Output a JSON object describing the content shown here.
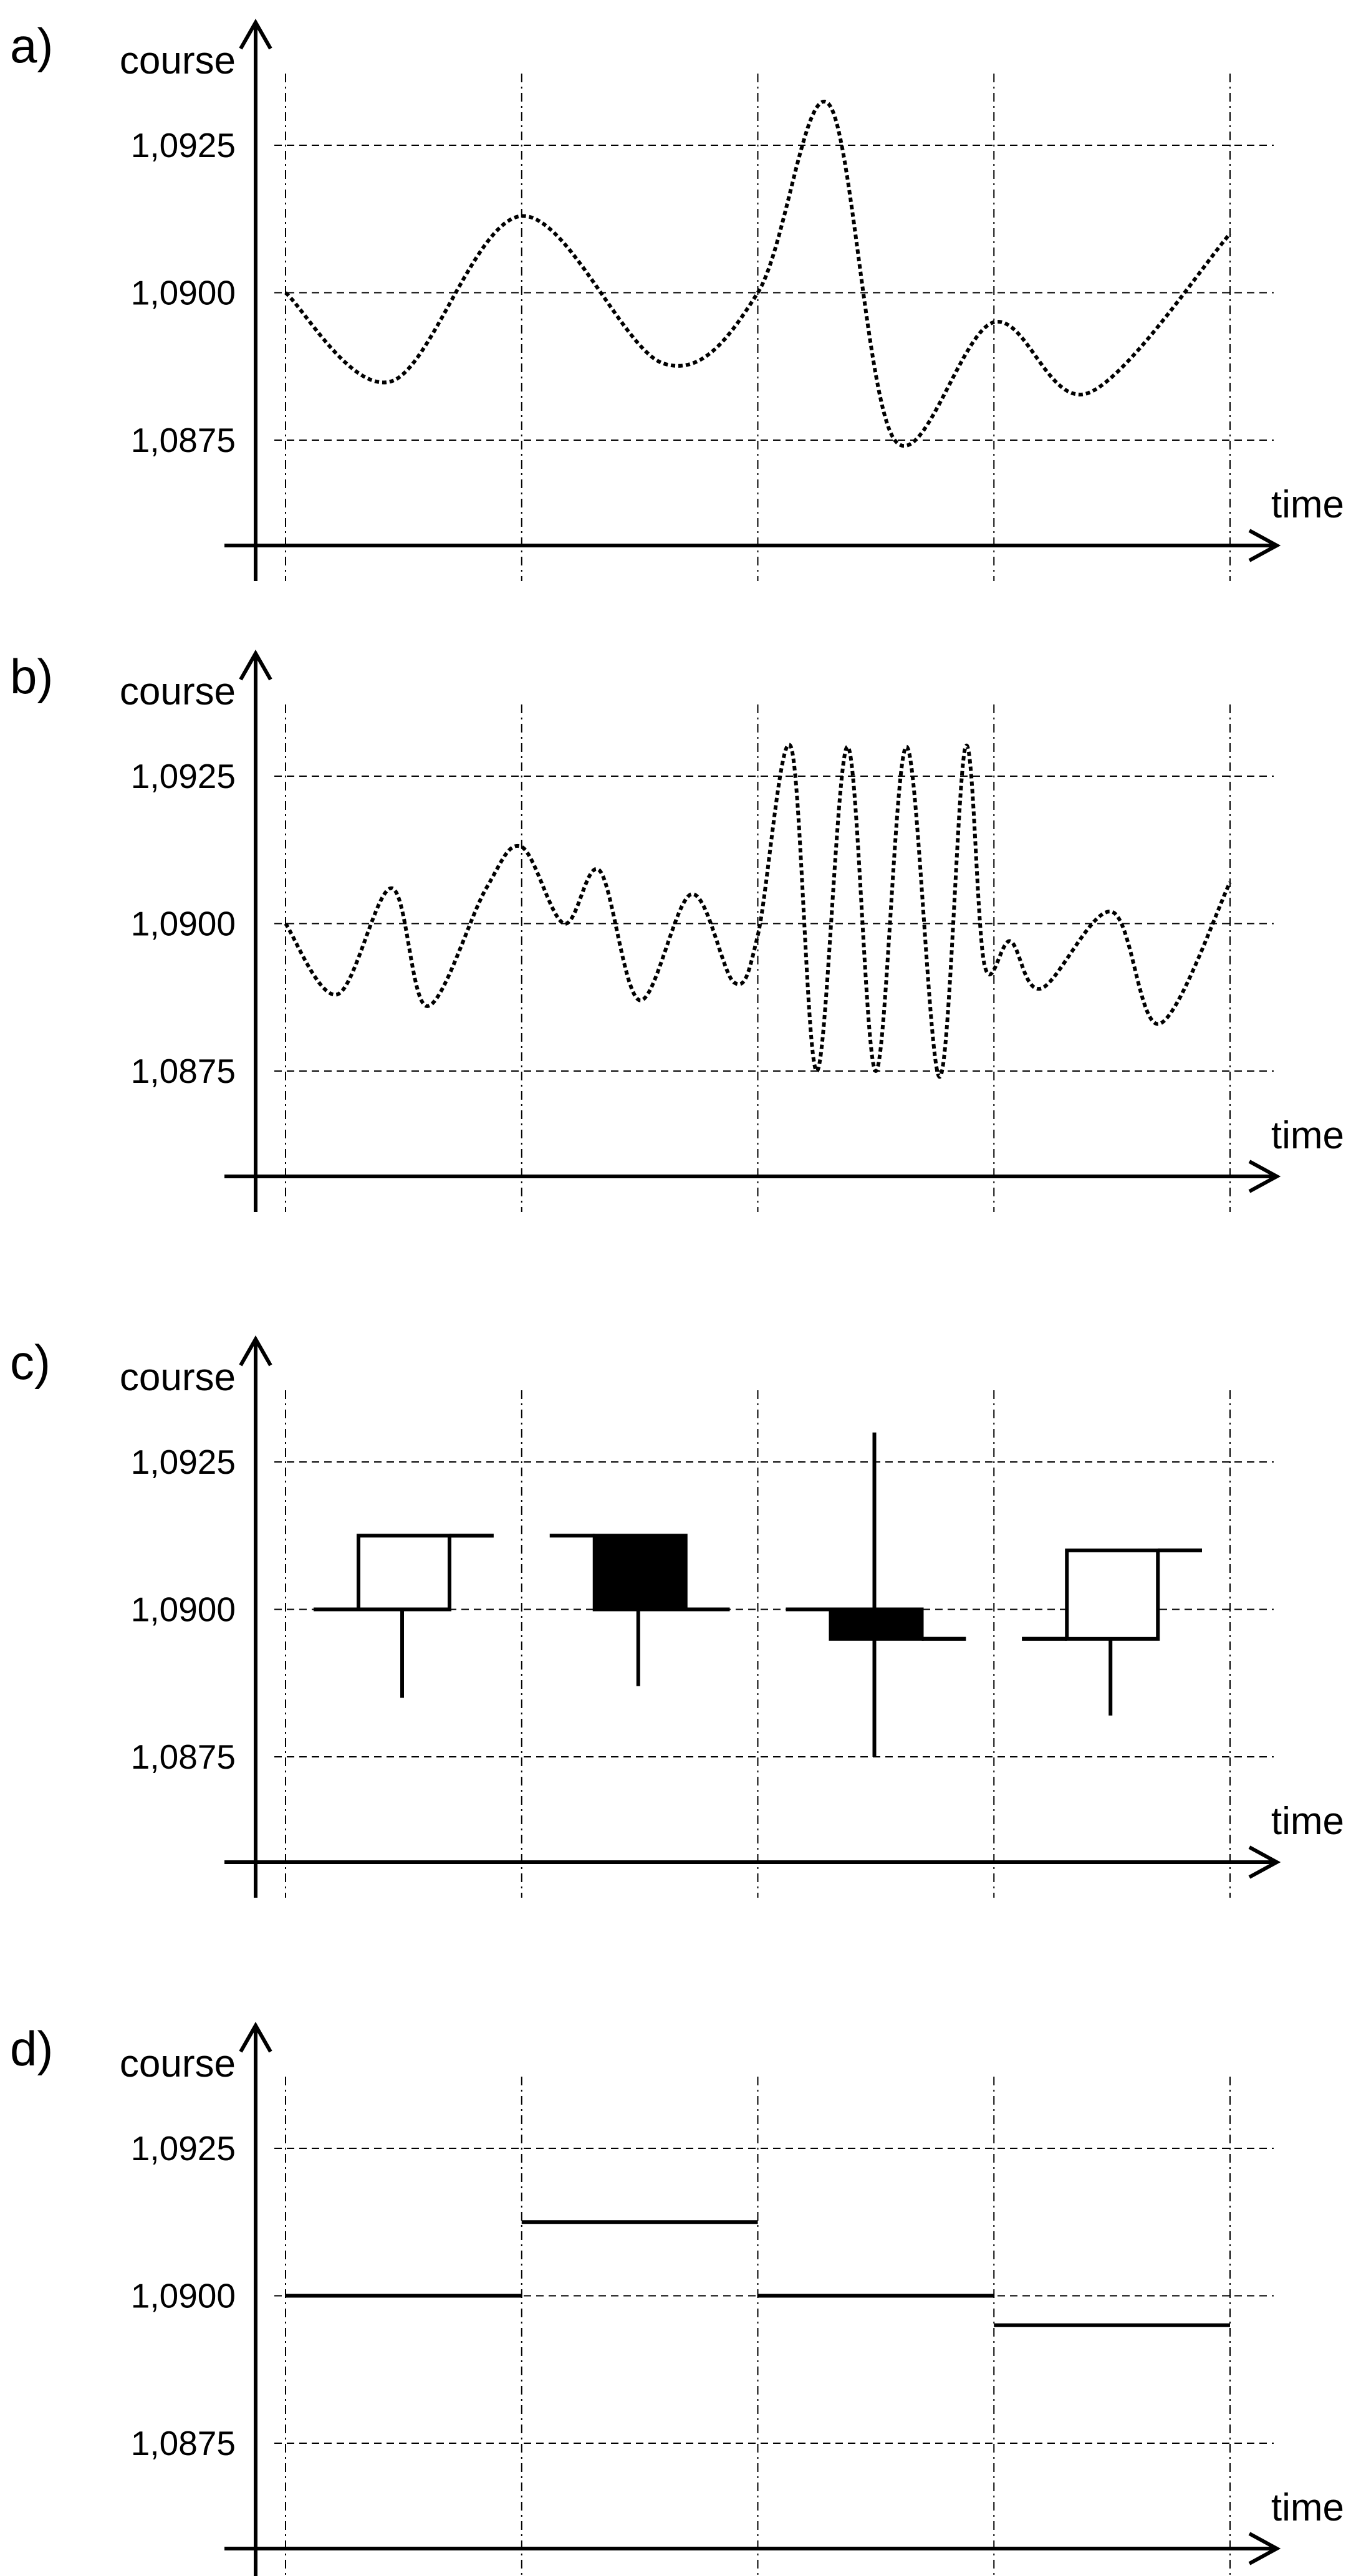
{
  "figure": {
    "panels": [
      {
        "id": "a",
        "label": "a)",
        "ylabel": "course",
        "xlabel": "time",
        "yticks": [
          "1,0925",
          "1,0900",
          "1,0875"
        ]
      },
      {
        "id": "b",
        "label": "b)",
        "ylabel": "course",
        "xlabel": "time",
        "yticks": [
          "1,0925",
          "1,0900",
          "1,0875"
        ]
      },
      {
        "id": "c",
        "label": "c)",
        "ylabel": "course",
        "xlabel": "time",
        "yticks": [
          "1,0925",
          "1,0900",
          "1,0875"
        ]
      },
      {
        "id": "d",
        "label": "d)",
        "ylabel": "course",
        "xlabel": "time",
        "yticks": [
          "1,0925",
          "1,0900",
          "1,0875"
        ]
      }
    ]
  },
  "colors": {
    "ink": "#000000",
    "grid": "#000000",
    "background": "#ffffff"
  },
  "chart_data": [
    {
      "type": "line",
      "panel": "a",
      "style": "dotted",
      "ylim": [
        1.0858,
        1.0935
      ],
      "xlim": [
        0,
        4
      ],
      "ytick_values": [
        1.0925,
        1.09,
        1.0875
      ],
      "grid": true,
      "x": [
        0,
        0.45,
        1.0,
        1.6,
        2.0,
        2.3,
        2.58,
        3.0,
        3.4,
        4.0
      ],
      "y": [
        1.09,
        1.0885,
        1.0913,
        1.0888,
        1.09,
        1.0932,
        1.0875,
        1.0895,
        1.0883,
        1.091
      ]
    },
    {
      "type": "line",
      "panel": "b",
      "style": "dotted",
      "ylim": [
        1.0858,
        1.0935
      ],
      "xlim": [
        0,
        4
      ],
      "ytick_values": [
        1.0925,
        1.09,
        1.0875
      ],
      "grid": true,
      "x": [
        0,
        0.22,
        0.45,
        0.6,
        0.85,
        1.0,
        1.18,
        1.33,
        1.5,
        1.72,
        1.9,
        2.0,
        2.14,
        2.25,
        2.38,
        2.5,
        2.63,
        2.77,
        2.88,
        2.96,
        3.07,
        3.2,
        3.5,
        3.7,
        4.0
      ],
      "y": [
        1.09,
        1.0888,
        1.0906,
        1.0886,
        1.0906,
        1.0913,
        1.09,
        1.0909,
        1.0887,
        1.0905,
        1.089,
        1.0898,
        1.093,
        1.0875,
        1.093,
        1.0875,
        1.093,
        1.0874,
        1.093,
        1.0893,
        1.0897,
        1.0889,
        1.0902,
        1.0883,
        1.0907
      ]
    },
    {
      "type": "candlestick",
      "panel": "c",
      "ylim": [
        1.0858,
        1.0935
      ],
      "xlim": [
        0,
        4
      ],
      "ytick_values": [
        1.0925,
        1.09,
        1.0875
      ],
      "grid": true,
      "candles": [
        {
          "open": 1.09,
          "high": 1.09125,
          "low": 1.0885,
          "close": 1.09125,
          "filled": false
        },
        {
          "open": 1.09125,
          "high": 1.09125,
          "low": 1.0887,
          "close": 1.09,
          "filled": true
        },
        {
          "open": 1.09,
          "high": 1.093,
          "low": 1.0875,
          "close": 1.0895,
          "filled": true
        },
        {
          "open": 1.0895,
          "high": 1.091,
          "low": 1.0882,
          "close": 1.091,
          "filled": false
        }
      ]
    },
    {
      "type": "step",
      "panel": "d",
      "ylim": [
        1.0858,
        1.0935
      ],
      "xlim": [
        0,
        4
      ],
      "ytick_values": [
        1.0925,
        1.09,
        1.0875
      ],
      "grid": true,
      "segments": [
        {
          "x0": 0,
          "x1": 1,
          "y": 1.09
        },
        {
          "x0": 1,
          "x1": 2,
          "y": 1.09125
        },
        {
          "x0": 2,
          "x1": 3,
          "y": 1.09
        },
        {
          "x0": 3,
          "x1": 4,
          "y": 1.0895
        }
      ]
    }
  ]
}
